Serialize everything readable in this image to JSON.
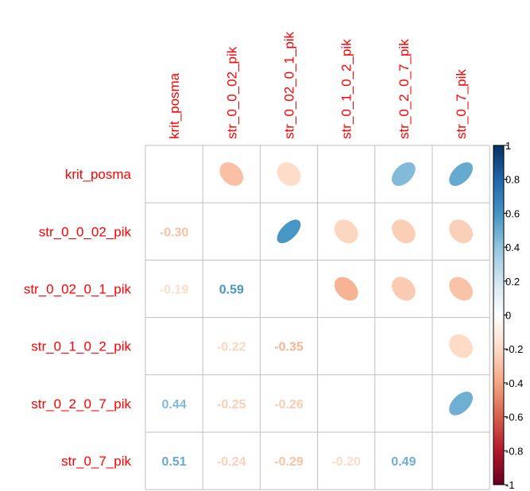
{
  "chart_data": {
    "type": "heatmap",
    "variables": [
      "krit_posma",
      "str_0_0_02_pik",
      "str_0_02_0_1_pik",
      "str_0_1_0_2_pik",
      "str_0_2_0_7_pik",
      "str_0_7_pik"
    ],
    "matrix": [
      [
        1.0,
        -0.3,
        -0.19,
        null,
        0.44,
        0.51
      ],
      [
        -0.3,
        1.0,
        0.59,
        -0.22,
        -0.25,
        -0.24
      ],
      [
        -0.19,
        0.59,
        1.0,
        -0.35,
        -0.26,
        -0.29
      ],
      [
        null,
        -0.22,
        -0.35,
        1.0,
        null,
        -0.2
      ],
      [
        0.44,
        -0.25,
        -0.26,
        null,
        1.0,
        0.49
      ],
      [
        0.51,
        -0.24,
        -0.29,
        -0.2,
        0.49,
        1.0
      ]
    ],
    "upper": "ellipse",
    "lower": "number",
    "diagonal": "blank",
    "colorbar": {
      "min": -1,
      "max": 1,
      "ticks": [
        "1",
        "0.8",
        "0.6",
        "0.4",
        "0.2",
        "0",
        "-0.2",
        "-0.4",
        "-0.6",
        "-0.8",
        "-1"
      ]
    },
    "label_color": "#ff0000",
    "colors": [
      "#67001f",
      "#b2182b",
      "#d6604d",
      "#f4a582",
      "#fddbc7",
      "#ffffff",
      "#d1e5f0",
      "#92c5de",
      "#4393c3",
      "#2166ac",
      "#053061"
    ]
  }
}
